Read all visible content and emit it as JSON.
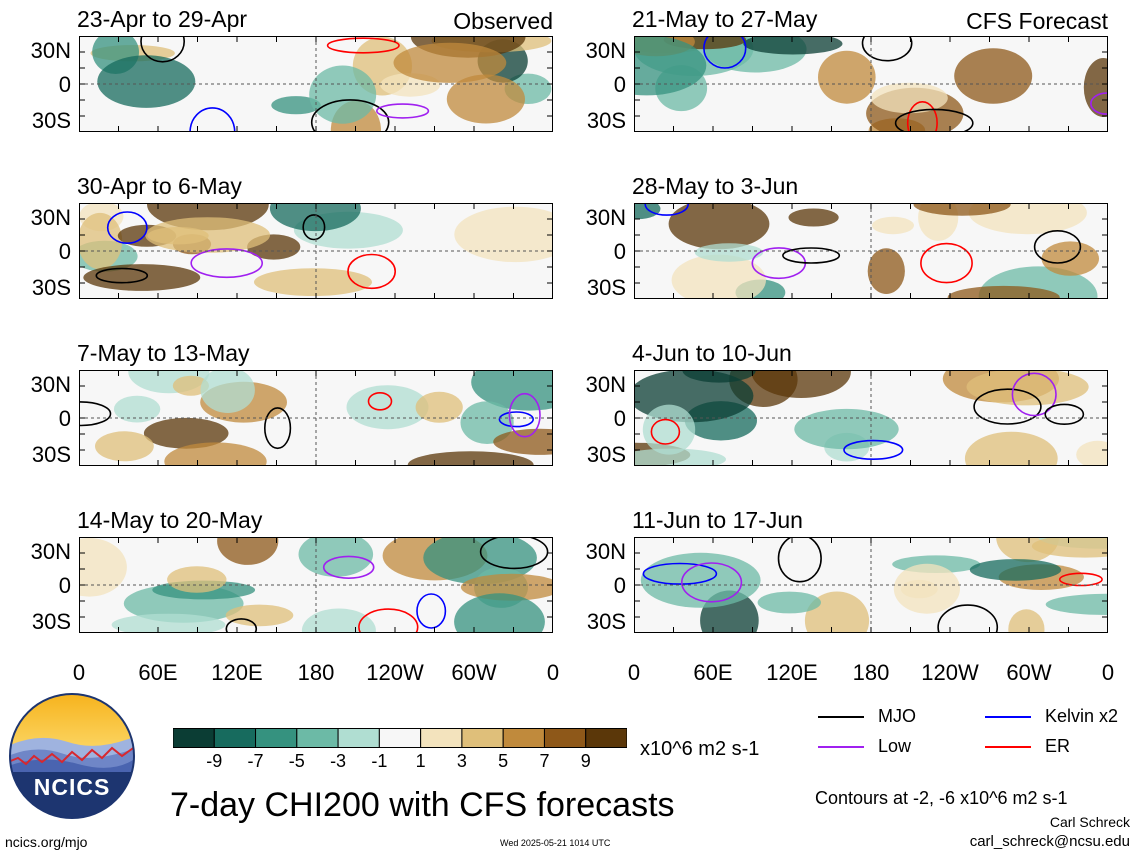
{
  "panels": [
    {
      "title": "23-Apr to 29-Apr",
      "label": "Observed"
    },
    {
      "title": "21-May to 27-May",
      "label": "CFS Forecast"
    },
    {
      "title": "30-Apr to 6-May",
      "label": ""
    },
    {
      "title": "28-May to 3-Jun",
      "label": ""
    },
    {
      "title": "7-May to 13-May",
      "label": ""
    },
    {
      "title": "4-Jun to 10-Jun",
      "label": ""
    },
    {
      "title": "14-May to 20-May",
      "label": ""
    },
    {
      "title": "11-Jun to 17-Jun",
      "label": ""
    }
  ],
  "y_ticks": [
    "30N",
    "0",
    "30S"
  ],
  "x_ticks": [
    "0",
    "60E",
    "120E",
    "180",
    "120W",
    "60W",
    "0"
  ],
  "colorbar": {
    "ticks": [
      "-9",
      "-7",
      "-5",
      "-3",
      "-1",
      "1",
      "3",
      "5",
      "7",
      "9"
    ],
    "unit": "x10^6 m2 s-1",
    "colors": [
      "#0b3d34",
      "#176b5e",
      "#35927f",
      "#6cbaa6",
      "#b0ded2",
      "#f7f7f7",
      "#f3e3bd",
      "#dfbf7a",
      "#c08a3c",
      "#8e5819",
      "#5b3709"
    ]
  },
  "legend": [
    {
      "label": "MJO",
      "color": "#000000"
    },
    {
      "label": "Kelvin x2",
      "color": "#0000ff"
    },
    {
      "label": "Low",
      "color": "#a020f0"
    },
    {
      "label": "ER",
      "color": "#ff0000"
    }
  ],
  "title": "7-day CHI200 with CFS forecasts",
  "contour_note": "Contours at -2, -6 x10^6 m2 s-1",
  "author": "Carl Schreck",
  "email": "carl_schreck@ncsu.edu",
  "site": "ncics.org/mjo",
  "timestamp": "Wed 2025-05-21 1014 UTC",
  "logo_text": "NCICS",
  "chart_data": {
    "type": "heatmap",
    "title": "7-day CHI200 with CFS forecasts",
    "xlabel": "",
    "ylabel": "",
    "x_ticks": [
      "0",
      "60E",
      "120E",
      "180",
      "120W",
      "60W",
      "0"
    ],
    "y_ticks": [
      "30N",
      "0",
      "30S"
    ],
    "color_levels": [
      -9,
      -7,
      -5,
      -3,
      -1,
      1,
      3,
      5,
      7,
      9
    ],
    "units": "x10^6 m2 s-1",
    "contour_levels": [
      -2,
      -6
    ],
    "panels": [
      {
        "period": "23-Apr to 29-Apr",
        "source": "Observed"
      },
      {
        "period": "30-Apr to 6-May",
        "source": "Observed"
      },
      {
        "period": "7-May to 13-May",
        "source": "Observed"
      },
      {
        "period": "14-May to 20-May",
        "source": "Observed"
      },
      {
        "period": "21-May to 27-May",
        "source": "CFS Forecast"
      },
      {
        "period": "28-May to 3-Jun",
        "source": "CFS Forecast"
      },
      {
        "period": "4-Jun to 10-Jun",
        "source": "CFS Forecast"
      },
      {
        "period": "11-Jun to 17-Jun",
        "source": "CFS Forecast"
      }
    ],
    "legend": [
      "MJO",
      "Kelvin x2",
      "Low",
      "ER"
    ]
  }
}
